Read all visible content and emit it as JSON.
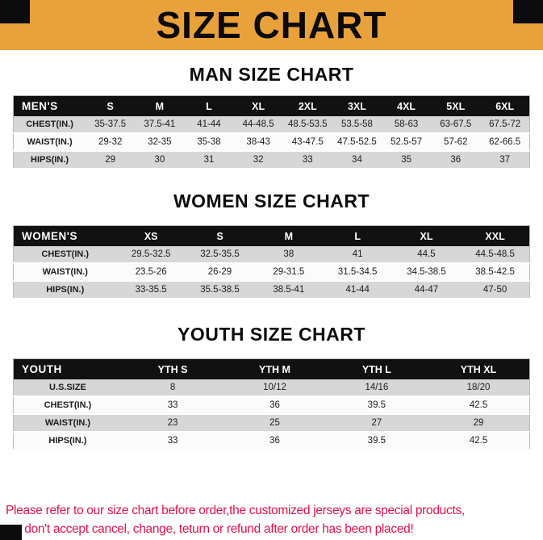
{
  "colors": {
    "banner_bg": "#E9A13B",
    "corner": "#0C0C0C",
    "header_bg": "#111111",
    "header_text": "#FFFFFF",
    "row_shade": "#D7D7D7",
    "row_plain": "#FBFBFB",
    "footer_text": "#E2114A"
  },
  "banner": {
    "title": "SIZE CHART"
  },
  "sections": [
    {
      "heading": "MAN SIZE CHART",
      "table": {
        "header": [
          "MEN'S",
          "S",
          "M",
          "L",
          "XL",
          "2XL",
          "3XL",
          "4XL",
          "5XL",
          "6XL"
        ],
        "rows": [
          [
            "CHEST(IN.)",
            "35-37.5",
            "37.5-41",
            "41-44",
            "44-48.5",
            "48.5-53.5",
            "53.5-58",
            "58-63",
            "63-67.5",
            "67.5-72"
          ],
          [
            "WAIST(IN.)",
            "29-32",
            "32-35",
            "35-38",
            "38-43",
            "43-47.5",
            "47.5-52.5",
            "52.5-57",
            "57-62",
            "62-66.5"
          ],
          [
            "HIPS(IN.)",
            "29",
            "30",
            "31",
            "32",
            "33",
            "34",
            "35",
            "36",
            "37"
          ]
        ]
      }
    },
    {
      "heading": "WOMEN SIZE CHART",
      "table": {
        "header": [
          "WOMEN'S",
          "XS",
          "S",
          "M",
          "L",
          "XL",
          "XXL"
        ],
        "rows": [
          [
            "CHEST(IN.)",
            "29.5-32.5",
            "32.5-35.5",
            "38",
            "41",
            "44.5",
            "44.5-48.5"
          ],
          [
            "WAIST(IN.)",
            "23.5-26",
            "26-29",
            "29-31.5",
            "31.5-34.5",
            "34.5-38.5",
            "38.5-42.5"
          ],
          [
            "HIPS(IN.)",
            "33-35.5",
            "35.5-38.5",
            "38.5-41",
            "41-44",
            "44-47",
            "47-50"
          ]
        ]
      }
    },
    {
      "heading": "YOUTH SIZE CHART",
      "table": {
        "header": [
          "YOUTH",
          "YTH S",
          "YTH M",
          "YTH L",
          "YTH XL"
        ],
        "rows": [
          [
            "U.S.SIZE",
            "8",
            "10/12",
            "14/16",
            "18/20"
          ],
          [
            "CHEST(IN.)",
            "33",
            "36",
            "39.5",
            "42.5"
          ],
          [
            "WAIST(IN.)",
            "23",
            "25",
            "27",
            "29"
          ],
          [
            "HIPS(IN.)",
            "33",
            "36",
            "39.5",
            "42.5"
          ]
        ]
      }
    }
  ],
  "footer": {
    "line1": "Please refer to our size chart before order,the customized jerseys are special products,",
    "line2": "we don't accept cancel, change, teturn or refund after order has been placed!"
  }
}
